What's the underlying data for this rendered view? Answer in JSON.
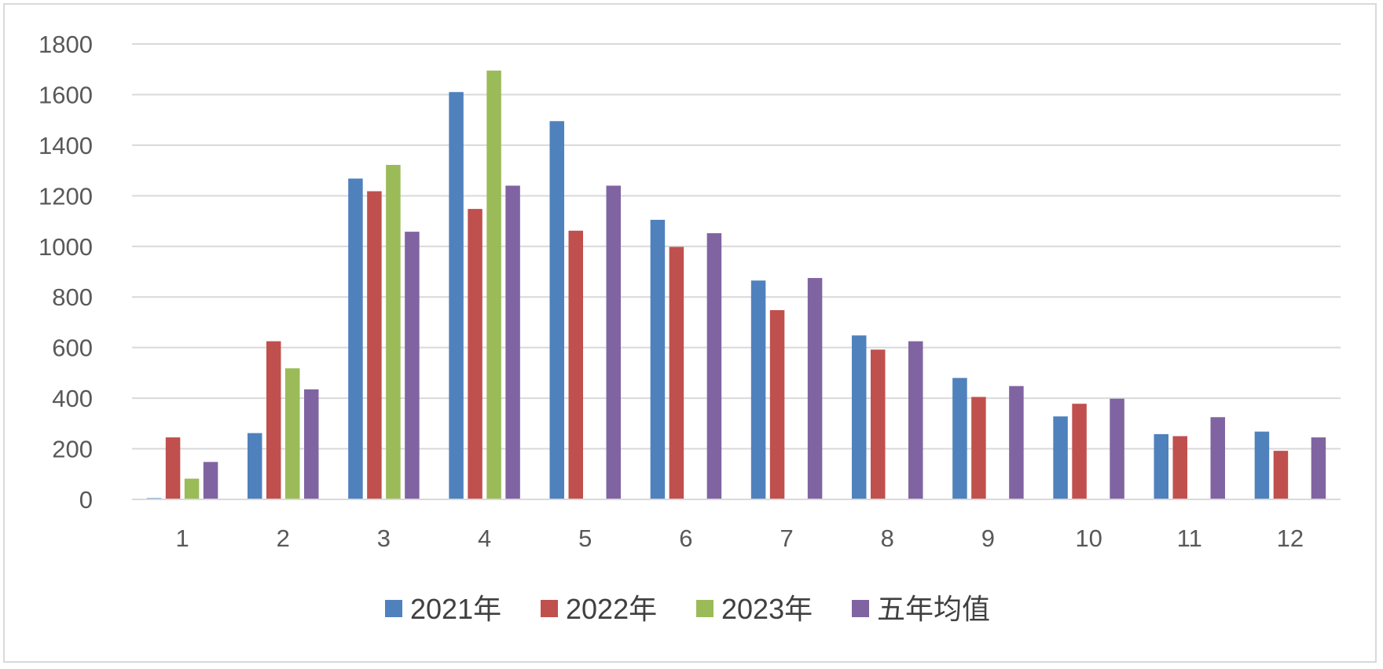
{
  "chart_data": {
    "type": "bar",
    "categories": [
      "1",
      "2",
      "3",
      "4",
      "5",
      "6",
      "7",
      "8",
      "9",
      "10",
      "11",
      "12"
    ],
    "series": [
      {
        "name": "2021年",
        "color": "#4f81bd",
        "values": [
          5,
          262,
          1268,
          1610,
          1495,
          1105,
          865,
          648,
          480,
          328,
          258,
          268
        ]
      },
      {
        "name": "2022年",
        "color": "#c0504d",
        "values": [
          245,
          625,
          1218,
          1148,
          1062,
          998,
          748,
          592,
          405,
          378,
          250,
          192
        ]
      },
      {
        "name": "2023年",
        "color": "#9bbb59",
        "values": [
          82,
          518,
          1322,
          1695,
          null,
          null,
          null,
          null,
          null,
          null,
          null,
          null
        ]
      },
      {
        "name": "五年均值",
        "color": "#8064a2",
        "values": [
          148,
          435,
          1058,
          1240,
          1240,
          1052,
          875,
          625,
          448,
          398,
          325,
          245
        ]
      }
    ],
    "yticks": [
      "0",
      "200",
      "400",
      "600",
      "800",
      "1000",
      "1200",
      "1400",
      "1600",
      "1800"
    ],
    "ylim": [
      0,
      1800
    ],
    "grid": true,
    "legend_position": "bottom"
  }
}
